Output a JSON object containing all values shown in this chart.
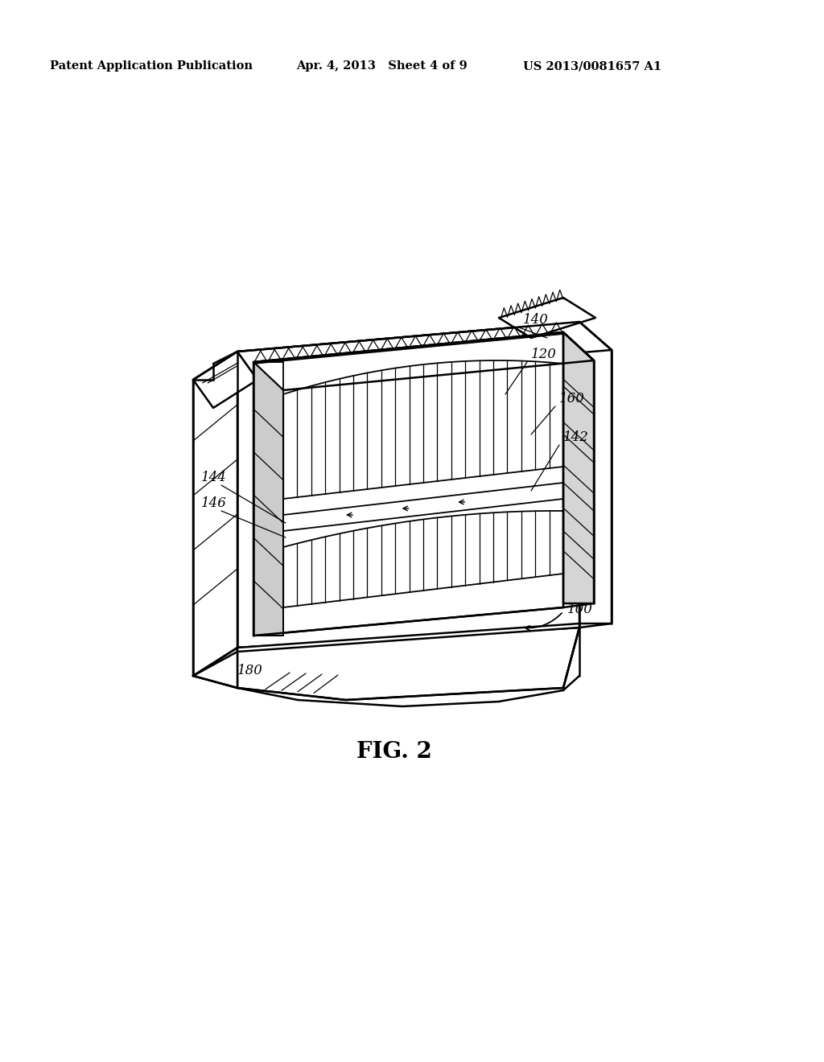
{
  "bg_color": "#ffffff",
  "line_color": "#000000",
  "header_left": "Patent Application Publication",
  "header_center": "Apr. 4, 2013   Sheet 4 of 9",
  "header_right": "US 2013/0081657 A1",
  "fig_label": "FIG. 2",
  "header_fontsize": 10.5,
  "label_fontsize": 12,
  "fig_label_fontsize": 20
}
